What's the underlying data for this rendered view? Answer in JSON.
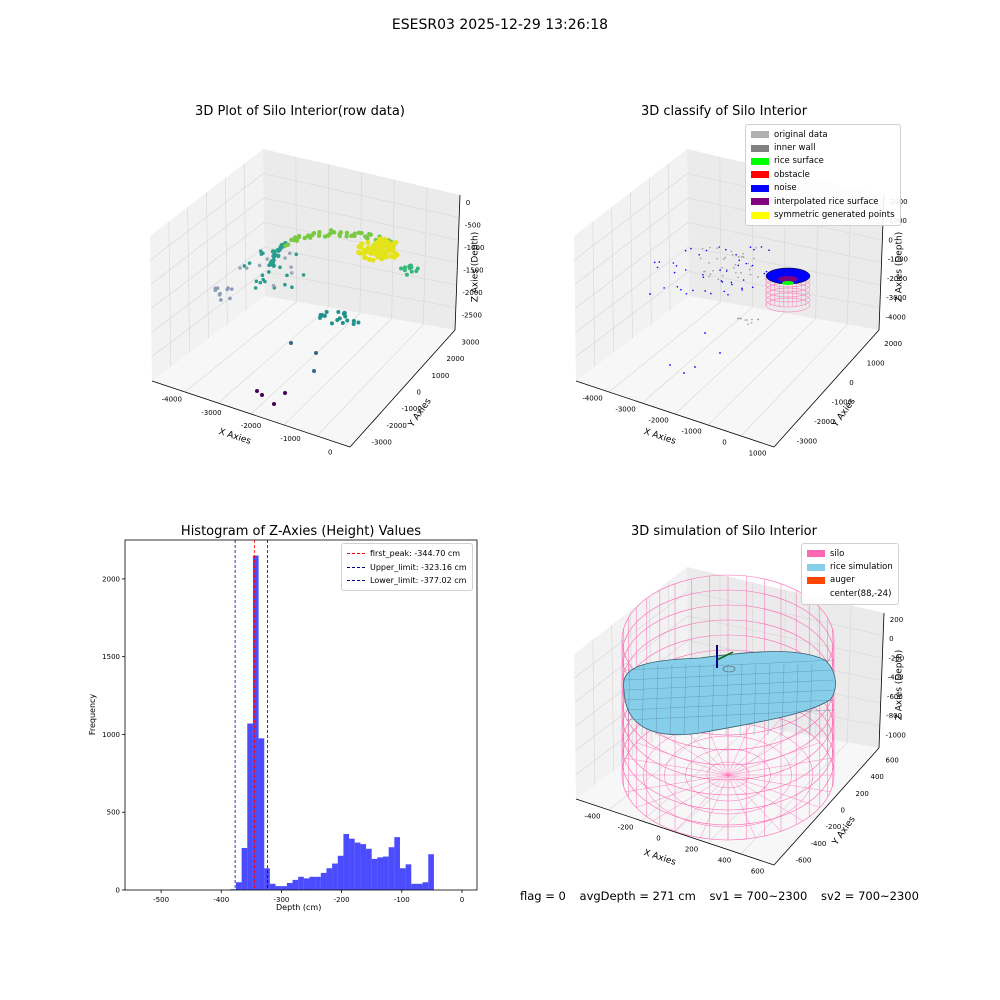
{
  "suptitle": "ESESR03 2025-12-29 13:26:18",
  "status": {
    "flag": "flag = 0",
    "avg_depth": "avgDepth = 271 cm",
    "sv1": "sv1 = 700~2300",
    "sv2": "sv2 = 700~2300"
  },
  "panels": {
    "raw": {
      "title": "3D Plot of Silo Interior(row data)",
      "xlabel": "X Axies",
      "ylabel": "Y Axies",
      "zlabel": "Z Axies (Depth)",
      "xticks": [
        "-4000",
        "-3000",
        "-2000",
        "-1000",
        "0"
      ],
      "yticks": [
        "-3000",
        "-2000",
        "-1000",
        "0",
        "1000",
        "2000",
        "3000"
      ],
      "zticks": [
        "0",
        "-500",
        "-1000",
        "-1500",
        "-2000",
        "-2500"
      ]
    },
    "classify": {
      "title": "3D classify of Silo Interior",
      "xlabel": "X Axies",
      "ylabel": "Y Axies",
      "zlabel": "Z Axies (Depth)",
      "xticks": [
        "-4000",
        "-3000",
        "-2000",
        "-1000",
        "0",
        "1000"
      ],
      "yticks": [
        "-3000",
        "-2000",
        "-1000",
        "0",
        "1000",
        "2000"
      ],
      "zticks": [
        "2000",
        "1000",
        "0",
        "-1000",
        "-2000",
        "-3000",
        "-4000"
      ],
      "legend": [
        {
          "label": "original data",
          "color": "#b0b0b0"
        },
        {
          "label": "inner wall",
          "color": "#808080"
        },
        {
          "label": "rice surface",
          "color": "#00ff00"
        },
        {
          "label": "obstacle",
          "color": "#ff0000"
        },
        {
          "label": "noise",
          "color": "#0000ff"
        },
        {
          "label": "interpolated rice surface",
          "color": "#800080"
        },
        {
          "label": "symmetric generated points",
          "color": "#ffff00"
        }
      ]
    },
    "simulation": {
      "title": "3D simulation of Silo Interior",
      "xlabel": "X Axies",
      "ylabel": "Y Axies",
      "zlabel": "Z Axies (Depth)",
      "xticks": [
        "-400",
        "-200",
        "0",
        "200",
        "400",
        "600"
      ],
      "yticks": [
        "-600",
        "-400",
        "-200",
        "0",
        "200",
        "400",
        "600"
      ],
      "zticks": [
        "200",
        "0",
        "-200",
        "-400",
        "-600",
        "-800",
        "-1000"
      ],
      "legend": [
        {
          "label": "silo",
          "color": "#ff69b4"
        },
        {
          "label": "rice simulation",
          "color": "#87ceeb"
        },
        {
          "label": "auger",
          "color": "#ff4500"
        },
        {
          "label": "center(88,-24)",
          "color": "#ffffff"
        }
      ]
    }
  },
  "chart_data": [
    {
      "type": "bar",
      "title": "Histogram of Z-Axies (Height) Values",
      "xlabel": "Depth (cm)",
      "ylabel": "Frequency",
      "xlim": [
        -560,
        25
      ],
      "ylim": [
        0,
        2250
      ],
      "xticks": [
        -500,
        -400,
        -300,
        -200,
        -100,
        0
      ],
      "yticks": [
        0,
        500,
        1000,
        1500,
        2000
      ],
      "bin_width": 9.4,
      "bin_start": -385,
      "bar_color": "#0000ff",
      "counts": [
        5,
        50,
        270,
        1070,
        2150,
        975,
        140,
        40,
        25,
        25,
        45,
        65,
        85,
        75,
        85,
        85,
        110,
        140,
        170,
        220,
        360,
        330,
        305,
        295,
        265,
        200,
        210,
        215,
        275,
        340,
        140,
        165,
        40,
        40,
        50,
        230
      ],
      "lines": [
        {
          "label": "first_peak: -344.70 cm",
          "x": -344.7,
          "color": "#ff0000"
        },
        {
          "label": "Upper_limit: -323.16 cm",
          "x": -323.16,
          "color": "#00008b"
        },
        {
          "label": "Lower_limit: -377.02 cm",
          "x": -377.02,
          "color": "#00008b"
        }
      ],
      "legend_position": "top-right"
    }
  ]
}
